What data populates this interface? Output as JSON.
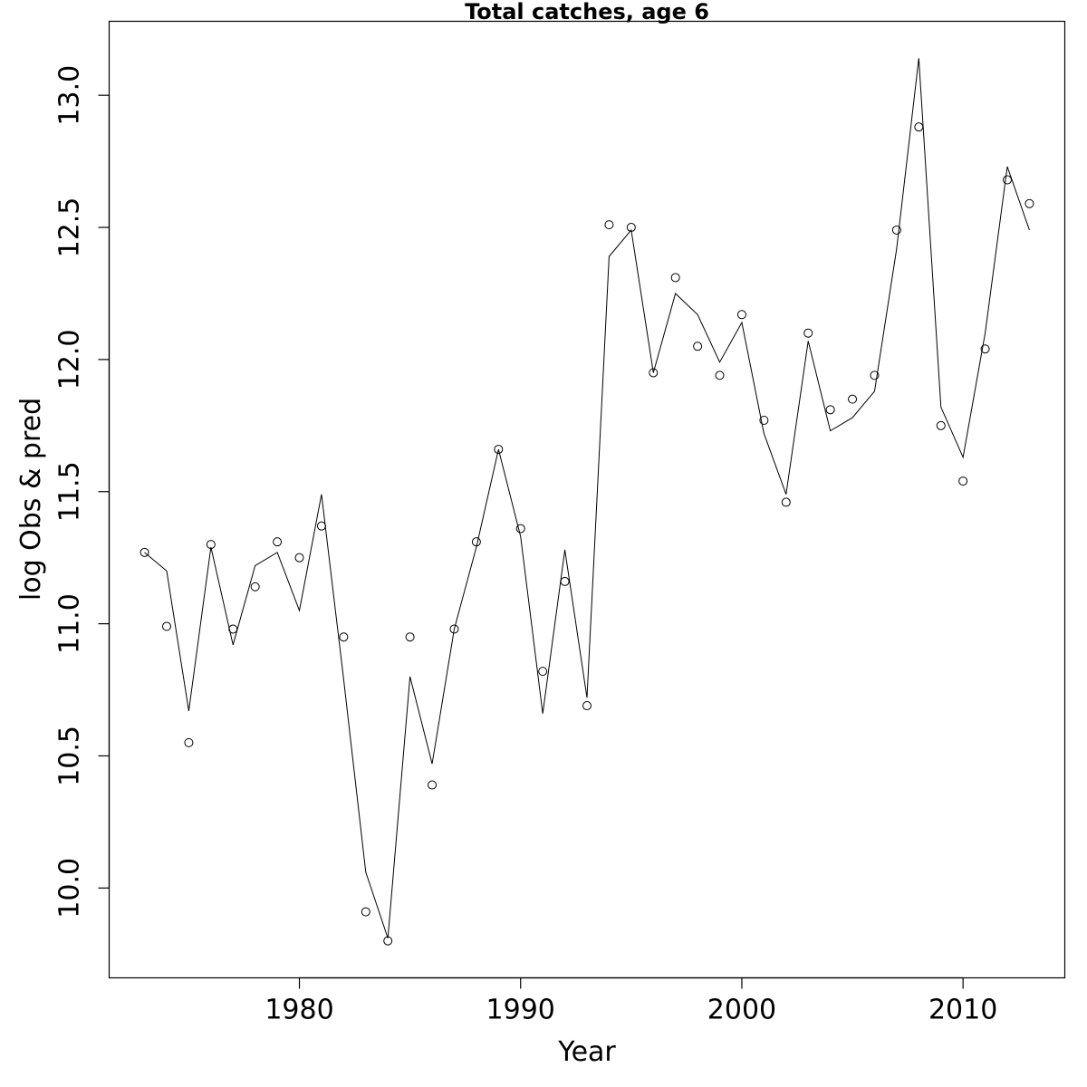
{
  "chart_data": {
    "type": "line",
    "title": "Total catches, age 6",
    "xlabel": "Year",
    "ylabel": "log Obs & pred",
    "xlim": [
      1971.4,
      2014.6
    ],
    "ylim": [
      9.66,
      13.28
    ],
    "x_ticks": [
      1980,
      1990,
      2000,
      2010
    ],
    "y_ticks": [
      10.0,
      10.5,
      11.0,
      11.5,
      12.0,
      12.5,
      13.0
    ],
    "x_tick_labels": [
      "1980",
      "1990",
      "2000",
      "2010"
    ],
    "y_tick_labels": [
      "10.0",
      "10.5",
      "11.0",
      "11.5",
      "12.0",
      "12.5",
      "13.0"
    ],
    "grid": false,
    "x": [
      1973,
      1974,
      1975,
      1976,
      1977,
      1978,
      1979,
      1980,
      1981,
      1982,
      1983,
      1984,
      1985,
      1986,
      1987,
      1988,
      1989,
      1990,
      1991,
      1992,
      1993,
      1994,
      1995,
      1996,
      1997,
      1998,
      1999,
      2000,
      2001,
      2002,
      2003,
      2004,
      2005,
      2006,
      2007,
      2008,
      2009,
      2010,
      2011,
      2012,
      2013
    ],
    "series": [
      {
        "style": "points",
        "marker": "open-circle",
        "values": [
          11.27,
          10.99,
          10.55,
          11.3,
          10.98,
          11.14,
          11.31,
          11.25,
          11.37,
          10.95,
          9.91,
          9.8,
          10.95,
          10.39,
          10.98,
          11.31,
          11.66,
          11.36,
          10.82,
          11.16,
          10.69,
          12.51,
          12.5,
          11.95,
          12.31,
          12.05,
          11.94,
          12.17,
          11.77,
          11.46,
          12.1,
          11.81,
          11.85,
          11.94,
          12.49,
          12.88,
          11.75,
          11.54,
          12.04,
          12.68,
          12.59
        ]
      },
      {
        "style": "line",
        "color": "#000000",
        "values": [
          11.27,
          11.2,
          10.67,
          11.29,
          10.92,
          11.22,
          11.27,
          11.05,
          11.49,
          10.79,
          10.06,
          9.81,
          10.8,
          10.47,
          10.98,
          11.29,
          11.66,
          11.33,
          10.66,
          11.28,
          10.72,
          12.39,
          12.49,
          11.95,
          12.25,
          12.17,
          11.99,
          12.14,
          11.72,
          11.49,
          12.07,
          11.73,
          11.78,
          11.88,
          12.42,
          13.14,
          11.82,
          11.63,
          12.1,
          12.73,
          12.49
        ]
      }
    ]
  }
}
